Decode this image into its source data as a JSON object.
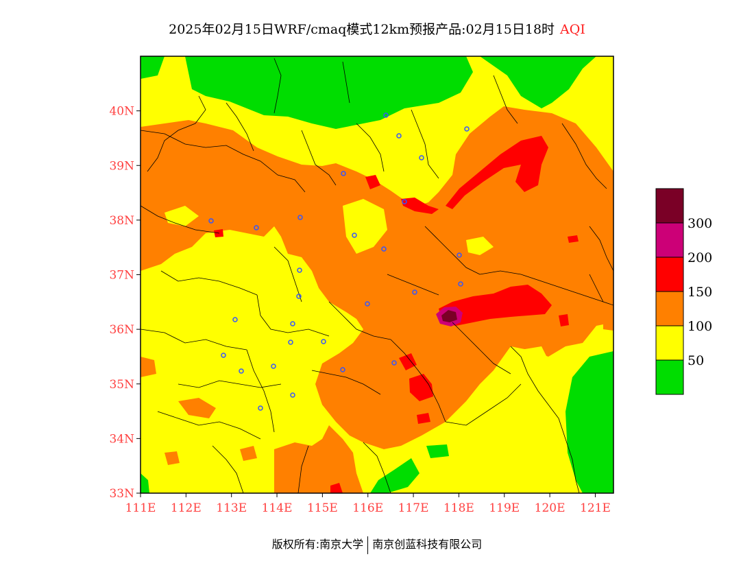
{
  "header": {
    "title": "2025年02月15日WRF/cmaq模式12km预报产品:02月15日18时",
    "variable": "AQI"
  },
  "axes": {
    "lat_labels": [
      "40N",
      "39N",
      "38N",
      "37N",
      "36N",
      "35N",
      "34N",
      "33N"
    ],
    "lon_labels": [
      "111E",
      "112E",
      "113E",
      "114E",
      "115E",
      "116E",
      "117E",
      "118E",
      "119E",
      "120E",
      "121E"
    ],
    "lat_range": [
      33,
      41
    ],
    "lon_range": [
      111,
      121.4
    ]
  },
  "legend": {
    "bins": [
      {
        "label": "",
        "color": "#00dd00"
      },
      {
        "label": "50",
        "color": "#ffff00"
      },
      {
        "label": "100",
        "color": "#ff8000"
      },
      {
        "label": "150",
        "color": "#ff0000"
      },
      {
        "label": "200",
        "color": "#cc0077"
      },
      {
        "label": "300",
        "color": "#7a0026"
      }
    ]
  },
  "colors": {
    "good": "#00dd00",
    "moderate": "#ffff00",
    "sensitive": "#ff8000",
    "unhealthy": "#ff0000",
    "very_unhealthy": "#cc0077",
    "hazardous": "#7a0026",
    "axis_label": "#ff4040",
    "city_marker": "#3355ff"
  },
  "footer": {
    "copyright": "版权所有:南京大学",
    "company": "南京创蓝科技有限公司"
  }
}
